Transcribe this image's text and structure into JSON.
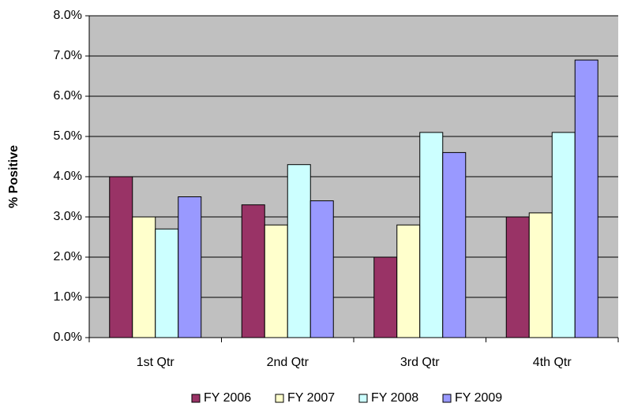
{
  "chart_data": {
    "type": "bar",
    "y_label": "% Positive",
    "categories": [
      "1st Qtr",
      "2nd Qtr",
      "3rd Qtr",
      "4th Qtr"
    ],
    "series": [
      {
        "name": "FY 2006",
        "color": "#993366",
        "values": [
          4.0,
          3.3,
          2.0,
          3.0
        ]
      },
      {
        "name": "FY 2007",
        "color": "#ffffcc",
        "values": [
          3.0,
          2.8,
          2.8,
          3.1
        ]
      },
      {
        "name": "FY 2008",
        "color": "#ccffff",
        "values": [
          2.7,
          4.3,
          5.1,
          5.1
        ]
      },
      {
        "name": "FY 2009",
        "color": "#9999ff",
        "values": [
          3.5,
          3.4,
          4.6,
          6.9
        ]
      }
    ],
    "ylim": [
      0,
      8
    ],
    "yticks": [
      {
        "value": 0,
        "label": "0.0%"
      },
      {
        "value": 1,
        "label": "1.0%"
      },
      {
        "value": 2,
        "label": "2.0%"
      },
      {
        "value": 3,
        "label": "3.0%"
      },
      {
        "value": 4,
        "label": "4.0%"
      },
      {
        "value": 5,
        "label": "5.0%"
      },
      {
        "value": 6,
        "label": "6.0%"
      },
      {
        "value": 7,
        "label": "7.0%"
      },
      {
        "value": 8,
        "label": "8.0%"
      }
    ],
    "grid": true,
    "plot_background": "#c0c0c0",
    "legend": "bottom"
  }
}
